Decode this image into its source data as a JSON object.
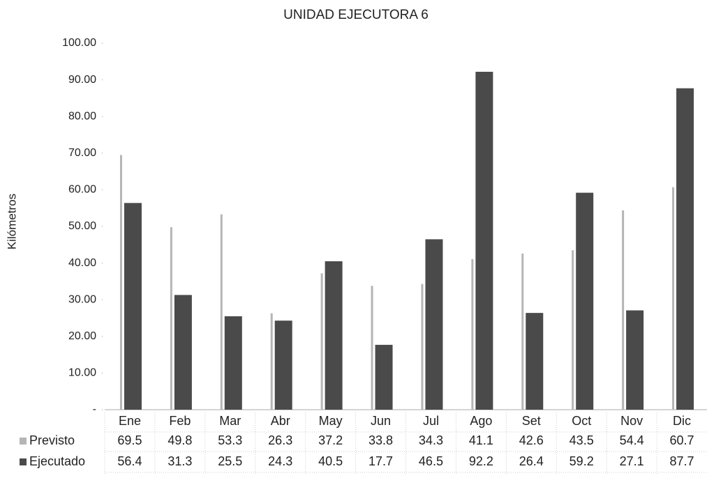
{
  "chart_data": {
    "type": "bar",
    "title": "UNIDAD EJECUTORA 6",
    "y_label": "Kilómetros",
    "categories": [
      "Ene",
      "Feb",
      "Mar",
      "Abr",
      "May",
      "Jun",
      "Jul",
      "Ago",
      "Set",
      "Oct",
      "Nov",
      "Dic"
    ],
    "series": [
      {
        "name": "Previsto",
        "color": "#b5b5b5",
        "values": [
          69.5,
          49.8,
          53.3,
          26.3,
          37.2,
          33.8,
          34.3,
          41.1,
          42.6,
          43.5,
          54.4,
          60.7
        ]
      },
      {
        "name": "Ejecutado",
        "color": "#4a4a4a",
        "values": [
          56.4,
          31.3,
          25.5,
          24.3,
          40.5,
          17.7,
          46.5,
          92.2,
          26.4,
          59.2,
          27.1,
          87.7
        ]
      }
    ],
    "ylim": [
      0,
      100
    ],
    "yticks": [
      {
        "value": 0,
        "label": "-"
      },
      {
        "value": 10,
        "label": "10.00"
      },
      {
        "value": 20,
        "label": "20.00"
      },
      {
        "value": 30,
        "label": "30.00"
      },
      {
        "value": 40,
        "label": "40.00"
      },
      {
        "value": 50,
        "label": "50.00"
      },
      {
        "value": 60,
        "label": "60.00"
      },
      {
        "value": 70,
        "label": "70.00"
      },
      {
        "value": 80,
        "label": "80.00"
      },
      {
        "value": 90,
        "label": "90.00"
      },
      {
        "value": 100,
        "label": "100.00"
      }
    ],
    "data_table": true
  }
}
